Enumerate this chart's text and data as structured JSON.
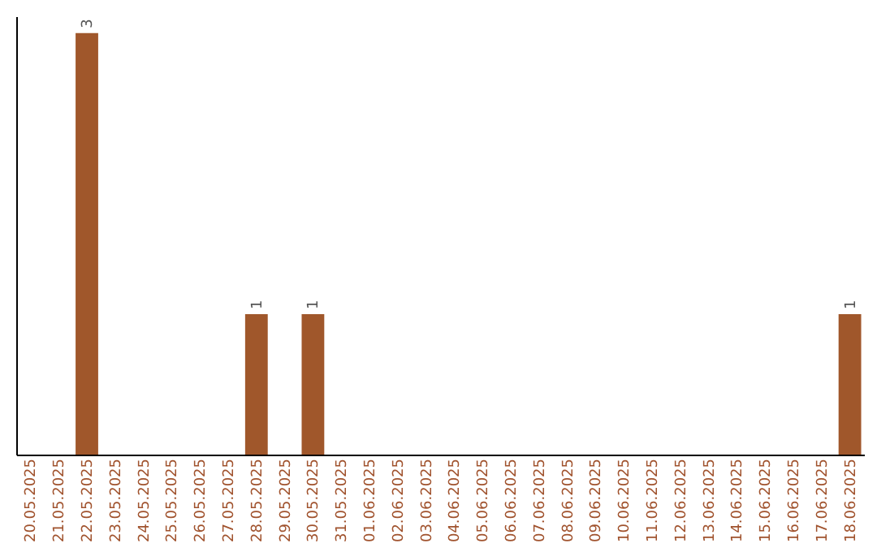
{
  "chart_data": {
    "type": "bar",
    "categories": [
      "20.05.2025",
      "21.05.2025",
      "22.05.2025",
      "23.05.2025",
      "24.05.2025",
      "25.05.2025",
      "26.05.2025",
      "27.05.2025",
      "28.05.2025",
      "29.05.2025",
      "30.05.2025",
      "31.05.2025",
      "01.06.2025",
      "02.06.2025",
      "03.06.2025",
      "04.06.2025",
      "05.06.2025",
      "06.06.2025",
      "07.06.2025",
      "08.06.2025",
      "09.06.2025",
      "10.06.2025",
      "11.06.2025",
      "12.06.2025",
      "13.06.2025",
      "14.06.2025",
      "15.06.2025",
      "16.06.2025",
      "17.06.2025",
      "18.06.2025"
    ],
    "values": [
      0,
      0,
      3,
      0,
      0,
      0,
      0,
      0,
      1,
      0,
      1,
      0,
      0,
      0,
      0,
      0,
      0,
      0,
      0,
      0,
      0,
      0,
      0,
      0,
      0,
      0,
      0,
      0,
      0,
      1
    ],
    "value_labels": [
      null,
      null,
      "3",
      null,
      null,
      null,
      null,
      null,
      "1",
      null,
      "1",
      null,
      null,
      null,
      null,
      null,
      null,
      null,
      null,
      null,
      null,
      null,
      null,
      null,
      null,
      null,
      null,
      null,
      null,
      "1"
    ],
    "color": "#a0572b",
    "tick_labels": "x",
    "grid": false
  }
}
